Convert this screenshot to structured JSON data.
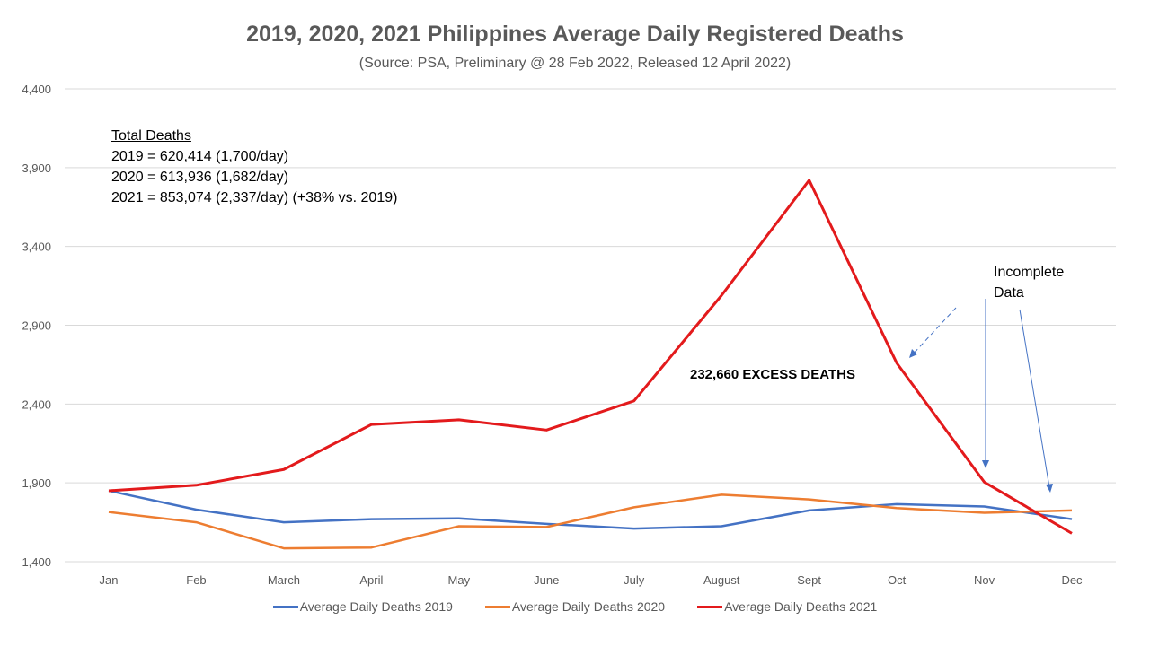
{
  "chart_data": {
    "type": "line",
    "title": "2019, 2020, 2021 Philippines Average Daily Registered Deaths",
    "subtitle": "(Source: PSA, Preliminary @ 28 Feb 2022, Released 12 April 2022)",
    "categories": [
      "Jan",
      "Feb",
      "March",
      "April",
      "May",
      "June",
      "July",
      "August",
      "Sept",
      "Oct",
      "Nov",
      "Dec"
    ],
    "ylim": [
      1400,
      4400
    ],
    "yticks": [
      "1,400",
      "1,900",
      "2,400",
      "2,900",
      "3,400",
      "3,900",
      "4,400"
    ],
    "grid": true,
    "legend_position": "bottom",
    "series": [
      {
        "name": "Average Daily Deaths 2019",
        "color": "#4472C4",
        "values": [
          1850,
          1730,
          1650,
          1670,
          1675,
          1640,
          1610,
          1625,
          1725,
          1765,
          1750,
          1670
        ]
      },
      {
        "name": "Average Daily Deaths 2020",
        "color": "#ED7D31",
        "values": [
          1715,
          1650,
          1485,
          1490,
          1625,
          1620,
          1745,
          1825,
          1795,
          1740,
          1710,
          1725
        ]
      },
      {
        "name": "Average Daily Deaths 2021",
        "color": "#E31A1C",
        "values": [
          1850,
          1885,
          1985,
          2270,
          2300,
          2235,
          2420,
          3090,
          3820,
          2660,
          1905,
          1580
        ]
      }
    ],
    "annotations": {
      "totals_heading": "Total Deaths",
      "totals_lines": [
        "2019 = 620,414 (1,700/day)",
        "2020 = 613,936 (1,682/day)",
        "2021 = 853,074 (2,337/day) (+38% vs. 2019)"
      ],
      "excess_label": "232,660 EXCESS DEATHS",
      "incomplete_line1": "Incomplete",
      "incomplete_line2": "Data"
    }
  }
}
